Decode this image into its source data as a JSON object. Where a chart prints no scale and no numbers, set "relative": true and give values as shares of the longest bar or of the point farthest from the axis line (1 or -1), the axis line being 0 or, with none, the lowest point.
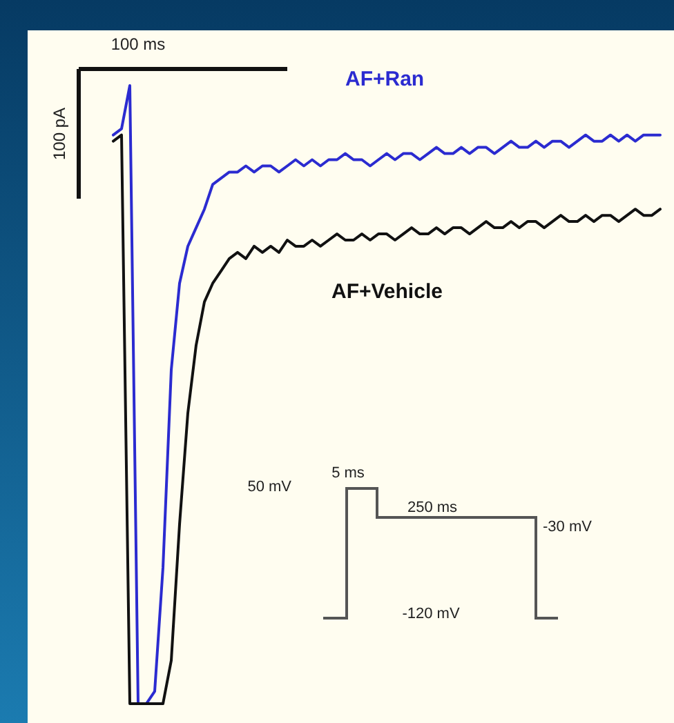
{
  "chart_data": {
    "type": "line",
    "relative": true,
    "categories": [
      null,
      null,
      null,
      null,
      null,
      null,
      null,
      null,
      null,
      null,
      null,
      null,
      null,
      null,
      null,
      null,
      null,
      null,
      null,
      null,
      null,
      null,
      null,
      null,
      null,
      null,
      null,
      null,
      null,
      null,
      null,
      null,
      null,
      null,
      null,
      null,
      null,
      null,
      null,
      null,
      null,
      null,
      null,
      null,
      null,
      null,
      null,
      null,
      null,
      null,
      null,
      null,
      null,
      null,
      null,
      null,
      null,
      null,
      null,
      null,
      null,
      null,
      null,
      null,
      null,
      null,
      null
    ],
    "series": [
      {
        "name": "AF+Ran",
        "color": "#2b2bd0",
        "values": [
          0.92,
          0.93,
          1,
          0,
          0,
          0.02,
          0.22,
          0.54,
          0.68,
          0.74,
          0.77,
          0.8,
          0.84,
          0.85,
          0.86,
          0.86,
          0.87,
          0.86,
          0.87,
          0.87,
          0.86,
          0.87,
          0.88,
          0.87,
          0.88,
          0.87,
          0.88,
          0.88,
          0.89,
          0.88,
          0.88,
          0.87,
          0.88,
          0.89,
          0.88,
          0.89,
          0.89,
          0.88,
          0.89,
          0.9,
          0.89,
          0.89,
          0.9,
          0.89,
          0.9,
          0.9,
          0.89,
          0.9,
          0.91,
          0.9,
          0.9,
          0.91,
          0.9,
          0.91,
          0.91,
          0.9,
          0.91,
          0.92,
          0.91,
          0.91,
          0.92,
          0.91,
          0.92,
          0.91,
          0.92,
          0.92,
          0.92
        ]
      },
      {
        "name": "AF+Vehicle",
        "color": "#111111",
        "values": [
          0.91,
          0.92,
          0,
          0,
          0,
          0,
          0,
          0.07,
          0.29,
          0.47,
          0.58,
          0.65,
          0.68,
          0.7,
          0.72,
          0.73,
          0.72,
          0.74,
          0.73,
          0.74,
          0.73,
          0.75,
          0.74,
          0.74,
          0.75,
          0.74,
          0.75,
          0.76,
          0.75,
          0.75,
          0.76,
          0.75,
          0.76,
          0.76,
          0.75,
          0.76,
          0.77,
          0.76,
          0.76,
          0.77,
          0.76,
          0.77,
          0.77,
          0.76,
          0.77,
          0.78,
          0.77,
          0.77,
          0.78,
          0.77,
          0.78,
          0.78,
          0.77,
          0.78,
          0.79,
          0.78,
          0.78,
          0.79,
          0.78,
          0.79,
          0.79,
          0.78,
          0.79,
          0.8,
          0.79,
          0.79,
          0.8
        ]
      }
    ],
    "annotations": [
      "100 ms",
      "100 pA",
      "5 ms",
      "50 mV",
      "250 ms",
      "-30 mV",
      "-120 mV"
    ]
  }
}
